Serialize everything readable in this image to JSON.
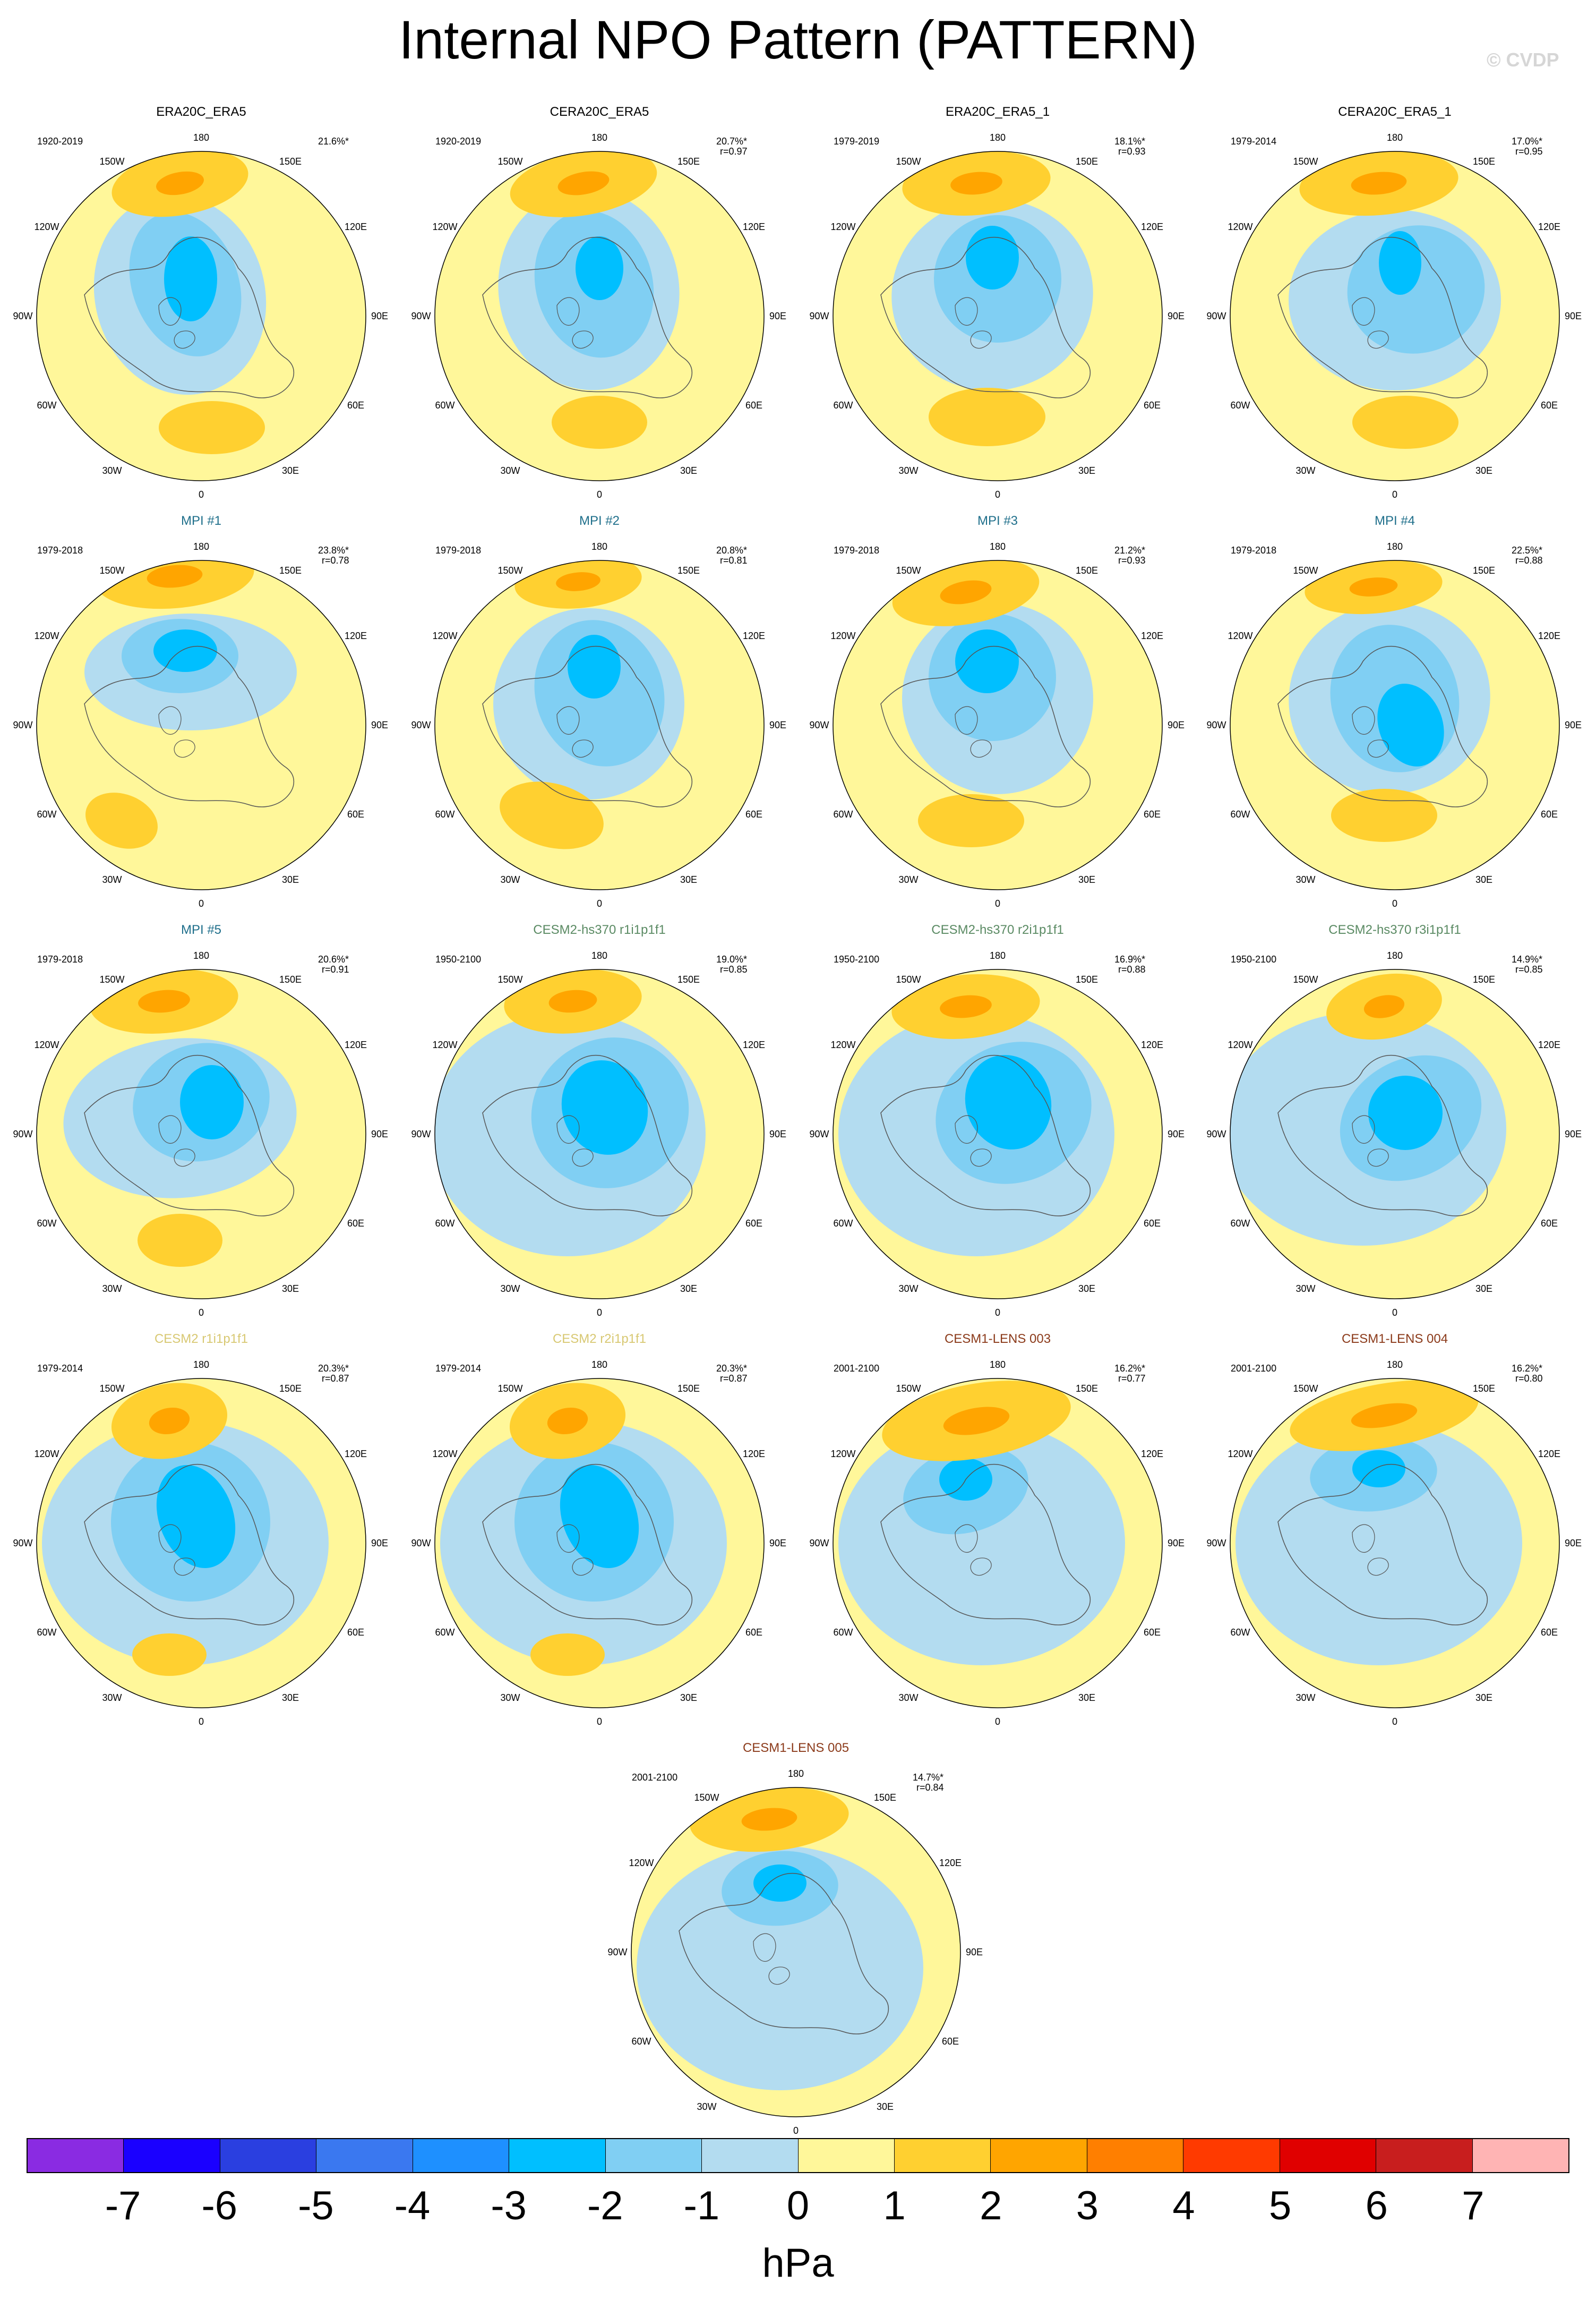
{
  "title": "Internal NPO Pattern (PATTERN)",
  "watermark": "© CVDP",
  "longitude_labels": [
    "180",
    "150E",
    "120E",
    "90E",
    "60E",
    "30E",
    "0",
    "30W",
    "60W",
    "90W",
    "120W",
    "150W"
  ],
  "panels": [
    {
      "title": "ERA20C_ERA5",
      "title_color": "#000000",
      "period": "1920-2019",
      "pct": "21.6%*",
      "corr": "",
      "variant": 0
    },
    {
      "title": "CERA20C_ERA5",
      "title_color": "#000000",
      "period": "1920-2019",
      "pct": "20.7%*",
      "corr": "r=0.97",
      "variant": 1
    },
    {
      "title": "ERA20C_ERA5_1",
      "title_color": "#000000",
      "period": "1979-2019",
      "pct": "18.1%*",
      "corr": "r=0.93",
      "variant": 2
    },
    {
      "title": "CERA20C_ERA5_1",
      "title_color": "#000000",
      "period": "1979-2014",
      "pct": "17.0%*",
      "corr": "r=0.95",
      "variant": 3
    },
    {
      "title": "MPI #1",
      "title_color": "#1f6f8b",
      "period": "1979-2018",
      "pct": "23.8%*",
      "corr": "r=0.78",
      "variant": 4
    },
    {
      "title": "MPI #2",
      "title_color": "#1f6f8b",
      "period": "1979-2018",
      "pct": "20.8%*",
      "corr": "r=0.81",
      "variant": 5
    },
    {
      "title": "MPI #3",
      "title_color": "#1f6f8b",
      "period": "1979-2018",
      "pct": "21.2%*",
      "corr": "r=0.93",
      "variant": 6
    },
    {
      "title": "MPI #4",
      "title_color": "#1f6f8b",
      "period": "1979-2018",
      "pct": "22.5%*",
      "corr": "r=0.88",
      "variant": 7
    },
    {
      "title": "MPI #5",
      "title_color": "#1f6f8b",
      "period": "1979-2018",
      "pct": "20.6%*",
      "corr": "r=0.91",
      "variant": 8
    },
    {
      "title": "CESM2-hs370 r1i1p1f1",
      "title_color": "#5a8a63",
      "period": "1950-2100",
      "pct": "19.0%*",
      "corr": "r=0.85",
      "variant": 9
    },
    {
      "title": "CESM2-hs370 r2i1p1f1",
      "title_color": "#5a8a63",
      "period": "1950-2100",
      "pct": "16.9%*",
      "corr": "r=0.88",
      "variant": 10
    },
    {
      "title": "CESM2-hs370 r3i1p1f1",
      "title_color": "#5a8a63",
      "period": "1950-2100",
      "pct": "14.9%*",
      "corr": "r=0.85",
      "variant": 11
    },
    {
      "title": "CESM2 r1i1p1f1",
      "title_color": "#d8c872",
      "period": "1979-2014",
      "pct": "20.3%*",
      "corr": "r=0.87",
      "variant": 12
    },
    {
      "title": "CESM2 r2i1p1f1",
      "title_color": "#d8c872",
      "period": "1979-2014",
      "pct": "20.3%*",
      "corr": "r=0.87",
      "variant": 13
    },
    {
      "title": "CESM1-LENS 003",
      "title_color": "#8b3a1a",
      "period": "2001-2100",
      "pct": "16.2%*",
      "corr": "r=0.77",
      "variant": 14
    },
    {
      "title": "CESM1-LENS 004",
      "title_color": "#8b3a1a",
      "period": "2001-2100",
      "pct": "16.2%*",
      "corr": "r=0.80",
      "variant": 15
    },
    {
      "title": "CESM1-LENS 005",
      "title_color": "#8b3a1a",
      "period": "2001-2100",
      "pct": "14.7%*",
      "corr": "r=0.84",
      "variant": 16
    }
  ],
  "colorbar": {
    "unit": "hPa",
    "colors": [
      "#8a2be2",
      "#1a00ff",
      "#2a3fe0",
      "#3a78f0",
      "#1e90ff",
      "#00bfff",
      "#80cff3",
      "#b3dcf0",
      "#fff79a",
      "#ffd030",
      "#ffa500",
      "#ff7f00",
      "#ff3a00",
      "#e00000",
      "#c81e1e",
      "#ffb4b4"
    ],
    "tick_labels": [
      "-7",
      "-6",
      "-5",
      "-4",
      "-3",
      "-2",
      "-1",
      "0",
      "1",
      "2",
      "3",
      "4",
      "5",
      "6",
      "7"
    ]
  }
}
